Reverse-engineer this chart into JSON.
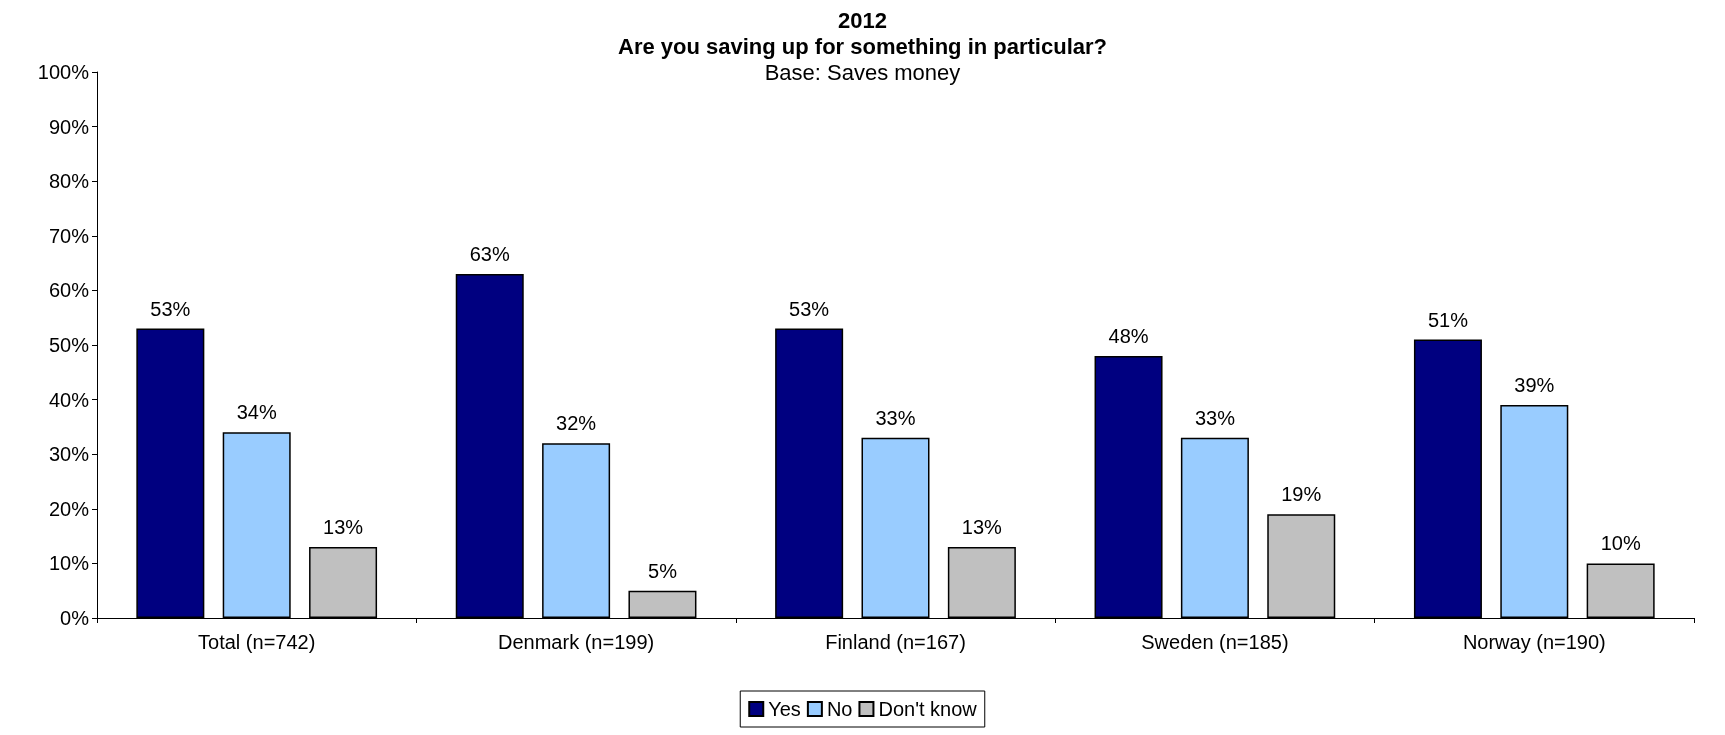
{
  "chart_data": {
    "type": "bar",
    "title": "2012\nAre you saving up for something in particular?",
    "subtitle": "Base: Saves money",
    "categories": [
      "Total (n=742)",
      "Denmark (n=199)",
      "Finland (n=167)",
      "Sweden (n=185)",
      "Norway (n=190)"
    ],
    "series": [
      {
        "name": "Yes",
        "color": "#000080",
        "values": [
          53,
          63,
          53,
          48,
          51
        ],
        "value_labels": [
          "53%",
          "63%",
          "53%",
          "48%",
          "51%"
        ]
      },
      {
        "name": "No",
        "color": "#99ccff",
        "values": [
          34,
          32,
          33,
          33,
          39
        ],
        "value_labels": [
          "34%",
          "32%",
          "33%",
          "33%",
          "39%"
        ]
      },
      {
        "name": "Don't know",
        "color": "#c0c0c0",
        "values": [
          13,
          5,
          13,
          19,
          10
        ],
        "value_labels": [
          "13%",
          "5%",
          "13%",
          "19%",
          "10%"
        ]
      }
    ],
    "ylim": [
      0,
      100
    ],
    "yticks": [
      {
        "value": 0,
        "label": "0%"
      },
      {
        "value": 10,
        "label": "10%"
      },
      {
        "value": 20,
        "label": "20%"
      },
      {
        "value": 30,
        "label": "30%"
      },
      {
        "value": 40,
        "label": "40%"
      },
      {
        "value": 50,
        "label": "50%"
      },
      {
        "value": 60,
        "label": "60%"
      },
      {
        "value": 70,
        "label": "70%"
      },
      {
        "value": 80,
        "label": "80%"
      },
      {
        "value": 90,
        "label": "90%"
      },
      {
        "value": 100,
        "label": "100%"
      }
    ],
    "grid": false,
    "legend": "bottom"
  }
}
